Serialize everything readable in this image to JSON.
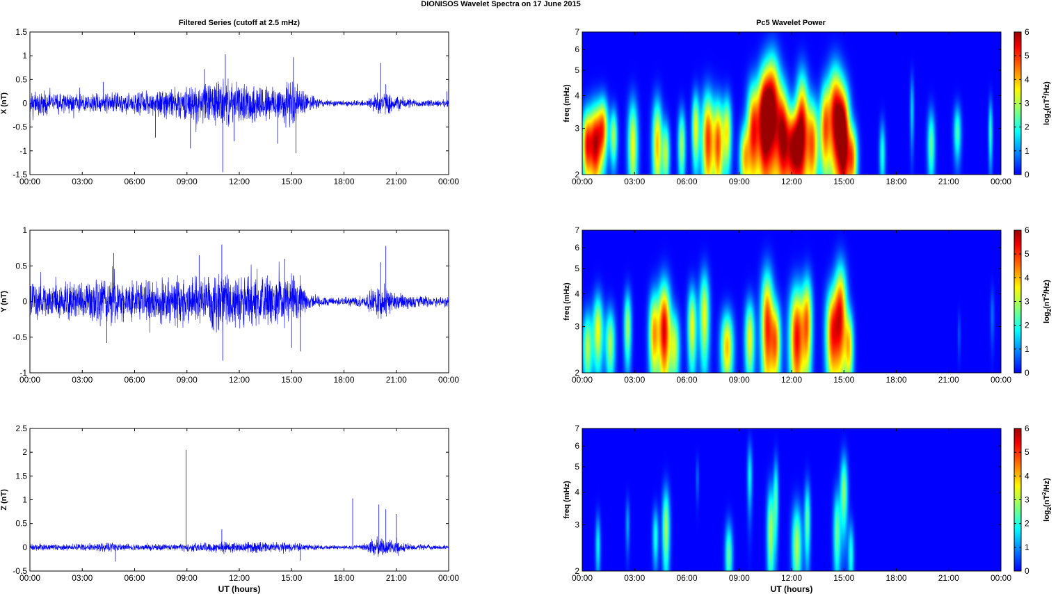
{
  "figure": {
    "suptitle": "DIONISOS Wavelet Spectra on 17 June      2015",
    "left_title": "Filtered Series (cutoff at 2.5 mHz)",
    "right_title": "Pc5 Wavelet Power"
  },
  "chart_data": [
    {
      "type": "line",
      "title": "Filtered Series (cutoff at 2.5 mHz)",
      "ylabel": "X (nT)",
      "xlabel": "",
      "xlim": [
        0,
        24
      ],
      "ylim": [
        -1.5,
        1.5
      ],
      "x_ticks": [
        "00:00",
        "03:00",
        "06:00",
        "09:00",
        "12:00",
        "15:00",
        "18:00",
        "21:00",
        "00:00"
      ],
      "y_ticks": [
        "1.5",
        "1",
        "0.5",
        "0",
        "-0.5",
        "-1",
        "-1.5"
      ],
      "y_tick_values": [
        1.5,
        1,
        0.5,
        0,
        -0.5,
        -1,
        -1.5
      ],
      "line_color": "#0000ff",
      "envelope": {
        "x": [
          0,
          3,
          4.5,
          6,
          7.5,
          9,
          10,
          11,
          12,
          13,
          14,
          15,
          16,
          17,
          18,
          19.2,
          20,
          21,
          22,
          23,
          24
        ],
        "amp": [
          0.3,
          0.22,
          0.25,
          0.25,
          0.35,
          0.4,
          0.5,
          0.6,
          0.45,
          0.5,
          0.45,
          0.6,
          0.2,
          0.08,
          0.07,
          0.08,
          0.3,
          0.2,
          0.1,
          0.08,
          0.1
        ]
      },
      "spikes": [
        {
          "x": 4.2,
          "y": 0.45
        },
        {
          "x": 7.2,
          "y": -0.72
        },
        {
          "x": 9.2,
          "y": -0.95
        },
        {
          "x": 10.0,
          "y": 0.72
        },
        {
          "x": 11.05,
          "y": -1.45
        },
        {
          "x": 11.2,
          "y": 1.03
        },
        {
          "x": 11.7,
          "y": -0.8
        },
        {
          "x": 14.2,
          "y": -0.85
        },
        {
          "x": 15.1,
          "y": 0.97
        },
        {
          "x": 15.25,
          "y": -1.05
        },
        {
          "x": 20.1,
          "y": 0.85
        },
        {
          "x": 20.4,
          "y": 0.4
        },
        {
          "x": 23.9,
          "y": 0.25
        }
      ]
    },
    {
      "type": "line",
      "title": "",
      "ylabel": "Y (nT)",
      "xlabel": "",
      "xlim": [
        0,
        24
      ],
      "ylim": [
        -1,
        1
      ],
      "x_ticks": [
        "00:00",
        "03:00",
        "06:00",
        "09:00",
        "12:00",
        "15:00",
        "18:00",
        "21:00",
        "00:00"
      ],
      "y_ticks": [
        "1",
        "0.5",
        "0",
        "-0.5",
        "-1"
      ],
      "y_tick_values": [
        1,
        0.5,
        0,
        -0.5,
        -1
      ],
      "line_color": "#0000ff",
      "envelope": {
        "x": [
          0,
          2,
          3,
          4.5,
          5,
          6,
          7,
          9,
          10,
          11,
          12,
          13,
          14,
          15,
          16,
          17,
          18,
          19.2,
          20,
          21,
          22,
          23,
          24
        ],
        "amp": [
          0.3,
          0.3,
          0.3,
          0.4,
          0.35,
          0.3,
          0.35,
          0.4,
          0.45,
          0.5,
          0.4,
          0.45,
          0.35,
          0.45,
          0.12,
          0.07,
          0.07,
          0.1,
          0.3,
          0.15,
          0.1,
          0.08,
          0.1
        ]
      },
      "spikes": [
        {
          "x": 4.8,
          "y": 0.68
        },
        {
          "x": 4.4,
          "y": -0.58
        },
        {
          "x": 9.7,
          "y": 0.65
        },
        {
          "x": 11.0,
          "y": 0.8
        },
        {
          "x": 11.05,
          "y": -0.83
        },
        {
          "x": 14.6,
          "y": 0.6
        },
        {
          "x": 15.0,
          "y": -0.65
        },
        {
          "x": 15.5,
          "y": -0.7
        },
        {
          "x": 20.4,
          "y": 0.78
        },
        {
          "x": 20.1,
          "y": 0.55
        }
      ]
    },
    {
      "type": "line",
      "title": "",
      "ylabel": "Z (nT)",
      "xlabel": "UT (hours)",
      "xlim": [
        0,
        24
      ],
      "ylim": [
        -0.5,
        2.5
      ],
      "x_ticks": [
        "00:00",
        "03:00",
        "06:00",
        "09:00",
        "12:00",
        "15:00",
        "18:00",
        "21:00",
        "00:00"
      ],
      "y_ticks": [
        "2.5",
        "2",
        "1.5",
        "1",
        "0.5",
        "0",
        "-0.5"
      ],
      "y_tick_values": [
        2.5,
        2,
        1.5,
        1,
        0.5,
        0,
        -0.5
      ],
      "line_color": "#0000ff",
      "envelope": {
        "x": [
          0,
          3,
          4.5,
          5,
          6,
          8,
          9,
          10,
          11,
          12,
          13,
          14,
          15,
          16,
          17,
          18,
          19,
          19.5,
          20,
          21,
          22,
          23,
          24
        ],
        "amp": [
          0.08,
          0.08,
          0.12,
          0.1,
          0.08,
          0.08,
          0.1,
          0.12,
          0.14,
          0.12,
          0.14,
          0.12,
          0.12,
          0.07,
          0.05,
          0.05,
          0.06,
          0.2,
          0.25,
          0.15,
          0.08,
          0.06,
          0.05
        ]
      },
      "spikes": [
        {
          "x": 8.95,
          "y": 2.05
        },
        {
          "x": 18.5,
          "y": 1.03
        },
        {
          "x": 20.0,
          "y": 0.9
        },
        {
          "x": 20.4,
          "y": 0.8
        },
        {
          "x": 21.0,
          "y": 0.7
        },
        {
          "x": 11.0,
          "y": 0.38
        },
        {
          "x": 4.9,
          "y": -0.3
        },
        {
          "x": 15.5,
          "y": -0.28
        }
      ]
    },
    {
      "type": "heatmap",
      "title": "Pc5 Wavelet Power",
      "ylabel": "freq (mHz)",
      "xlabel": "",
      "xlim": [
        0,
        24
      ],
      "ylim": [
        2,
        7
      ],
      "y_scale": "log",
      "x_ticks": [
        "00:00",
        "03:00",
        "06:00",
        "09:00",
        "12:00",
        "15:00",
        "18:00",
        "21:00",
        "00:00"
      ],
      "y_ticks": [
        "7",
        "6",
        "5",
        "4",
        "3",
        "2"
      ],
      "y_tick_values": [
        7,
        6,
        5,
        4,
        3,
        2
      ],
      "colorbar": {
        "ticks": [
          "6",
          "5",
          "4",
          "3",
          "2",
          "1",
          "0"
        ],
        "label_main": "log",
        "label_sub": "2",
        "label_rest": "(nT",
        "label_sup": "2",
        "label_end": "/Hz)",
        "range": [
          0,
          6
        ],
        "colormap": "jet"
      },
      "blobs": [
        {
          "x": 0.25,
          "f": 2.6,
          "p": 4.5,
          "w": 0.2,
          "h": 0.6
        },
        {
          "x": 0.75,
          "f": 2.6,
          "p": 5.5,
          "w": 0.25,
          "h": 0.7
        },
        {
          "x": 1.2,
          "f": 3.0,
          "p": 4,
          "w": 0.2,
          "h": 0.6
        },
        {
          "x": 1.8,
          "f": 2.8,
          "p": 3,
          "w": 0.15,
          "h": 0.5
        },
        {
          "x": 2.9,
          "f": 2.6,
          "p": 3.5,
          "w": 0.2,
          "h": 0.8
        },
        {
          "x": 4.3,
          "f": 2.6,
          "p": 4,
          "w": 0.2,
          "h": 0.8
        },
        {
          "x": 4.8,
          "f": 2.4,
          "p": 3,
          "w": 0.15,
          "h": 0.5
        },
        {
          "x": 5.7,
          "f": 2.6,
          "p": 3,
          "w": 0.15,
          "h": 0.6
        },
        {
          "x": 6.5,
          "f": 3.0,
          "p": 3.5,
          "w": 0.15,
          "h": 0.7
        },
        {
          "x": 7.2,
          "f": 2.7,
          "p": 5,
          "w": 0.25,
          "h": 0.9
        },
        {
          "x": 7.8,
          "f": 2.6,
          "p": 4.5,
          "w": 0.2,
          "h": 0.8
        },
        {
          "x": 8.3,
          "f": 2.9,
          "p": 3.5,
          "w": 0.18,
          "h": 0.7
        },
        {
          "x": 9.3,
          "f": 2.3,
          "p": 3.5,
          "w": 0.2,
          "h": 0.5
        },
        {
          "x": 9.8,
          "f": 2.9,
          "p": 5,
          "w": 0.25,
          "h": 1.0
        },
        {
          "x": 10.4,
          "f": 3.2,
          "p": 5.5,
          "w": 0.25,
          "h": 1.2
        },
        {
          "x": 10.9,
          "f": 3.5,
          "p": 5.8,
          "w": 0.3,
          "h": 1.4
        },
        {
          "x": 11.5,
          "f": 2.8,
          "p": 5,
          "w": 0.25,
          "h": 1.0
        },
        {
          "x": 12.1,
          "f": 2.5,
          "p": 5.5,
          "w": 0.3,
          "h": 0.7
        },
        {
          "x": 12.6,
          "f": 3.0,
          "p": 5,
          "w": 0.25,
          "h": 1.2
        },
        {
          "x": 13.2,
          "f": 2.6,
          "p": 4.5,
          "w": 0.25,
          "h": 0.8
        },
        {
          "x": 13.9,
          "f": 3.0,
          "p": 4,
          "w": 0.2,
          "h": 0.9
        },
        {
          "x": 14.5,
          "f": 3.3,
          "p": 5.5,
          "w": 0.3,
          "h": 1.2
        },
        {
          "x": 15.0,
          "f": 2.7,
          "p": 5.8,
          "w": 0.25,
          "h": 1.0
        },
        {
          "x": 15.5,
          "f": 2.3,
          "p": 4,
          "w": 0.2,
          "h": 0.5
        },
        {
          "x": 17.2,
          "f": 2.4,
          "p": 2,
          "w": 0.12,
          "h": 0.5
        },
        {
          "x": 20.0,
          "f": 2.6,
          "p": 2.5,
          "w": 0.15,
          "h": 0.6
        },
        {
          "x": 21.5,
          "f": 2.9,
          "p": 2.3,
          "w": 0.15,
          "h": 0.5
        },
        {
          "x": 23.4,
          "f": 2.9,
          "p": 2.2,
          "w": 0.08,
          "h": 0.6
        },
        {
          "x": 18.9,
          "f": 3.5,
          "p": 1.5,
          "w": 0.08,
          "h": 0.8
        }
      ]
    },
    {
      "type": "heatmap",
      "title": "",
      "ylabel": "freq (mHz)",
      "xlabel": "",
      "xlim": [
        0,
        24
      ],
      "ylim": [
        2,
        7
      ],
      "y_scale": "log",
      "x_ticks": [
        "00:00",
        "03:00",
        "06:00",
        "09:00",
        "12:00",
        "15:00",
        "18:00",
        "21:00",
        "00:00"
      ],
      "y_ticks": [
        "7",
        "6",
        "5",
        "4",
        "3",
        "2"
      ],
      "y_tick_values": [
        7,
        6,
        5,
        4,
        3,
        2
      ],
      "colorbar": {
        "ticks": [
          "6",
          "5",
          "4",
          "3",
          "2",
          "1",
          "0"
        ],
        "label_main": "log",
        "label_sub": "2",
        "label_rest": "(nT",
        "label_sup": "2",
        "label_end": "/Hz)",
        "range": [
          0,
          6
        ],
        "colormap": "jet"
      },
      "blobs": [
        {
          "x": 0.3,
          "f": 2.5,
          "p": 3,
          "w": 0.2,
          "h": 0.6
        },
        {
          "x": 0.9,
          "f": 2.9,
          "p": 3.5,
          "w": 0.2,
          "h": 0.7
        },
        {
          "x": 1.6,
          "f": 2.6,
          "p": 3,
          "w": 0.2,
          "h": 0.6
        },
        {
          "x": 2.6,
          "f": 3.0,
          "p": 3,
          "w": 0.15,
          "h": 0.7
        },
        {
          "x": 4.1,
          "f": 2.8,
          "p": 4,
          "w": 0.2,
          "h": 0.8
        },
        {
          "x": 4.7,
          "f": 2.9,
          "p": 5.5,
          "w": 0.25,
          "h": 1.0
        },
        {
          "x": 5.3,
          "f": 2.5,
          "p": 3,
          "w": 0.2,
          "h": 0.6
        },
        {
          "x": 6.3,
          "f": 3.0,
          "p": 3.5,
          "w": 0.18,
          "h": 0.8
        },
        {
          "x": 7.0,
          "f": 3.3,
          "p": 3.5,
          "w": 0.2,
          "h": 1.0
        },
        {
          "x": 8.3,
          "f": 2.5,
          "p": 4,
          "w": 0.25,
          "h": 0.6
        },
        {
          "x": 9.6,
          "f": 2.7,
          "p": 3.5,
          "w": 0.2,
          "h": 0.7
        },
        {
          "x": 10.6,
          "f": 3.0,
          "p": 5,
          "w": 0.25,
          "h": 1.2
        },
        {
          "x": 11.1,
          "f": 2.6,
          "p": 4,
          "w": 0.2,
          "h": 0.7
        },
        {
          "x": 12.3,
          "f": 2.7,
          "p": 5.3,
          "w": 0.3,
          "h": 1.0
        },
        {
          "x": 12.9,
          "f": 3.1,
          "p": 4,
          "w": 0.2,
          "h": 1.0
        },
        {
          "x": 14.3,
          "f": 2.8,
          "p": 4.5,
          "w": 0.25,
          "h": 0.9
        },
        {
          "x": 14.8,
          "f": 3.3,
          "p": 5,
          "w": 0.25,
          "h": 1.2
        },
        {
          "x": 15.3,
          "f": 2.5,
          "p": 3.5,
          "w": 0.18,
          "h": 0.6
        },
        {
          "x": 23.5,
          "f": 3.3,
          "p": 0.8,
          "w": 0.08,
          "h": 0.6
        },
        {
          "x": 21.6,
          "f": 2.8,
          "p": 0.6,
          "w": 0.06,
          "h": 0.4
        }
      ]
    },
    {
      "type": "heatmap",
      "title": "",
      "ylabel": "freq (mHz)",
      "xlabel": "UT (hours)",
      "xlim": [
        0,
        24
      ],
      "ylim": [
        2,
        7
      ],
      "y_scale": "log",
      "x_ticks": [
        "00:00",
        "03:00",
        "06:00",
        "09:00",
        "12:00",
        "15:00",
        "18:00",
        "21:00",
        "00:00"
      ],
      "y_ticks": [
        "7",
        "6",
        "5",
        "4",
        "3",
        "2"
      ],
      "y_tick_values": [
        7,
        6,
        5,
        4,
        3,
        2
      ],
      "colorbar": {
        "ticks": [
          "6",
          "5",
          "4",
          "3",
          "2",
          "1",
          "0"
        ],
        "label_main": "log",
        "label_sub": "2",
        "label_rest": "(nT",
        "label_sup": "2",
        "label_end": "/Hz)",
        "range": [
          0,
          6
        ],
        "colormap": "jet"
      },
      "blobs": [
        {
          "x": 0.9,
          "f": 2.5,
          "p": 1.8,
          "w": 0.1,
          "h": 0.5
        },
        {
          "x": 2.6,
          "f": 3.0,
          "p": 1.2,
          "w": 0.08,
          "h": 0.5
        },
        {
          "x": 4.2,
          "f": 2.7,
          "p": 2,
          "w": 0.12,
          "h": 0.5
        },
        {
          "x": 4.8,
          "f": 2.9,
          "p": 3,
          "w": 0.15,
          "h": 0.8
        },
        {
          "x": 6.6,
          "f": 4.5,
          "p": 0.8,
          "w": 0.06,
          "h": 0.6
        },
        {
          "x": 8.4,
          "f": 2.3,
          "p": 2.5,
          "w": 0.15,
          "h": 0.5
        },
        {
          "x": 9.6,
          "f": 4.6,
          "p": 1.8,
          "w": 0.1,
          "h": 1.0
        },
        {
          "x": 10.8,
          "f": 2.8,
          "p": 3,
          "w": 0.15,
          "h": 0.9
        },
        {
          "x": 11.1,
          "f": 3.8,
          "p": 2.2,
          "w": 0.1,
          "h": 1.0
        },
        {
          "x": 12.3,
          "f": 2.5,
          "p": 3,
          "w": 0.2,
          "h": 0.7
        },
        {
          "x": 12.9,
          "f": 3.1,
          "p": 2.5,
          "w": 0.12,
          "h": 0.8
        },
        {
          "x": 14.6,
          "f": 2.8,
          "p": 2.5,
          "w": 0.15,
          "h": 0.8
        },
        {
          "x": 15.0,
          "f": 4.0,
          "p": 2.8,
          "w": 0.15,
          "h": 1.0
        },
        {
          "x": 15.4,
          "f": 2.3,
          "p": 2,
          "w": 0.12,
          "h": 0.5
        }
      ]
    }
  ]
}
